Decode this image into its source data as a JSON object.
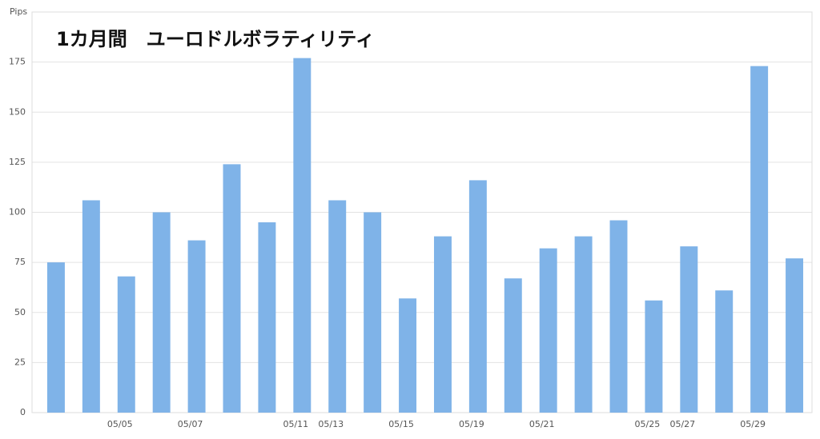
{
  "chart_data": {
    "type": "bar",
    "title": "1カ月間　ユーロドルボラティリティ",
    "y_label": "Pips",
    "categories": [
      null,
      null,
      "05/05",
      null,
      "05/07",
      null,
      null,
      "05/11",
      "05/13",
      null,
      "05/15",
      null,
      "05/19",
      null,
      "05/21",
      null,
      null,
      "05/25",
      "05/27",
      null,
      "05/29",
      null
    ],
    "values": [
      75,
      106,
      68,
      100,
      86,
      124,
      95,
      177,
      106,
      100,
      57,
      88,
      116,
      67,
      82,
      88,
      96,
      56,
      83,
      61,
      173,
      77
    ],
    "color": "#7fb3e8",
    "ylim": [
      0,
      200
    ],
    "yticks": [
      0,
      25,
      50,
      75,
      100,
      125,
      150,
      175
    ],
    "grid": true
  }
}
